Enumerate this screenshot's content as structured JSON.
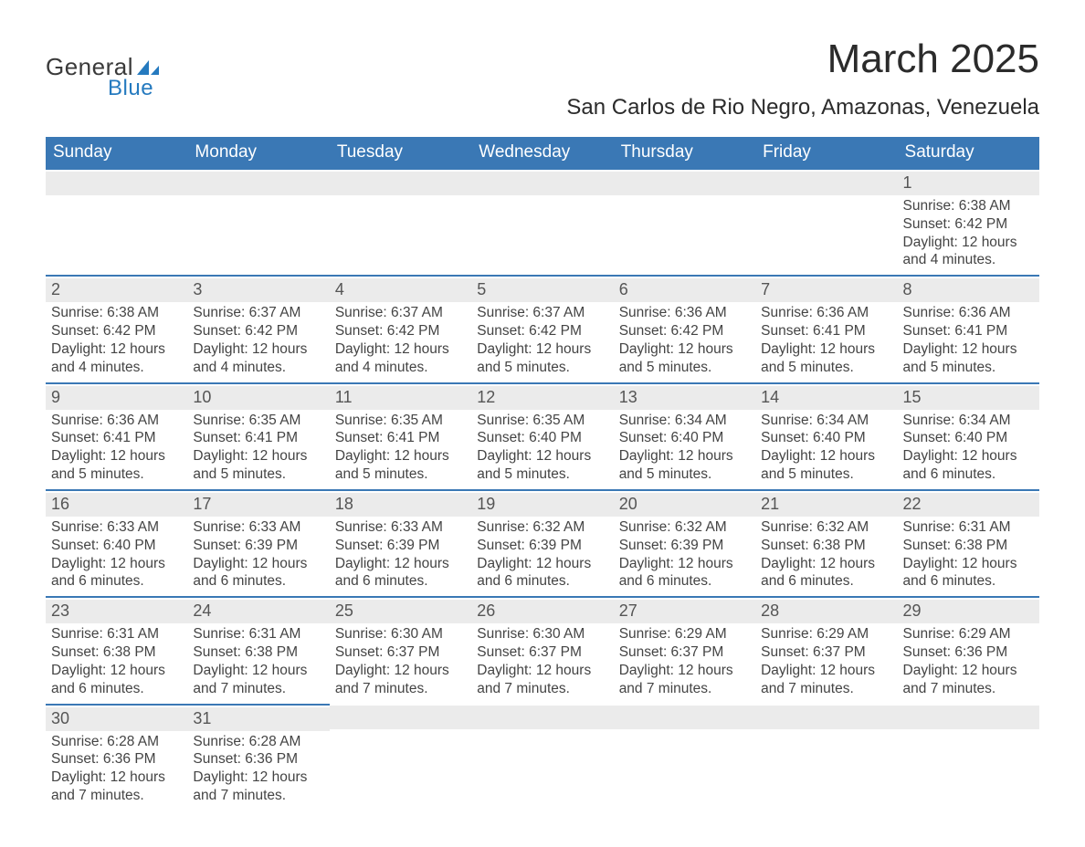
{
  "logo": {
    "general": "General",
    "blue": "Blue",
    "shape_color": "#257abf"
  },
  "title": "March 2025",
  "location": "San Carlos de Rio Negro, Amazonas, Venezuela",
  "colors": {
    "header_bg": "#3a78b5",
    "header_text": "#ffffff",
    "daynum_bg": "#ebebeb",
    "row_border": "#3a78b5",
    "text": "#414141"
  },
  "typography": {
    "title_fontsize": 44,
    "location_fontsize": 24,
    "dow_fontsize": 19,
    "daynum_fontsize": 18,
    "body_fontsize": 15.5
  },
  "days_of_week": [
    "Sunday",
    "Monday",
    "Tuesday",
    "Wednesday",
    "Thursday",
    "Friday",
    "Saturday"
  ],
  "weeks": [
    [
      {
        "blank": true
      },
      {
        "blank": true
      },
      {
        "blank": true
      },
      {
        "blank": true
      },
      {
        "blank": true
      },
      {
        "blank": true
      },
      {
        "n": "1",
        "sr": "Sunrise: 6:38 AM",
        "ss": "Sunset: 6:42 PM",
        "d1": "Daylight: 12 hours",
        "d2": "and 4 minutes."
      }
    ],
    [
      {
        "n": "2",
        "sr": "Sunrise: 6:38 AM",
        "ss": "Sunset: 6:42 PM",
        "d1": "Daylight: 12 hours",
        "d2": "and 4 minutes."
      },
      {
        "n": "3",
        "sr": "Sunrise: 6:37 AM",
        "ss": "Sunset: 6:42 PM",
        "d1": "Daylight: 12 hours",
        "d2": "and 4 minutes."
      },
      {
        "n": "4",
        "sr": "Sunrise: 6:37 AM",
        "ss": "Sunset: 6:42 PM",
        "d1": "Daylight: 12 hours",
        "d2": "and 4 minutes."
      },
      {
        "n": "5",
        "sr": "Sunrise: 6:37 AM",
        "ss": "Sunset: 6:42 PM",
        "d1": "Daylight: 12 hours",
        "d2": "and 5 minutes."
      },
      {
        "n": "6",
        "sr": "Sunrise: 6:36 AM",
        "ss": "Sunset: 6:42 PM",
        "d1": "Daylight: 12 hours",
        "d2": "and 5 minutes."
      },
      {
        "n": "7",
        "sr": "Sunrise: 6:36 AM",
        "ss": "Sunset: 6:41 PM",
        "d1": "Daylight: 12 hours",
        "d2": "and 5 minutes."
      },
      {
        "n": "8",
        "sr": "Sunrise: 6:36 AM",
        "ss": "Sunset: 6:41 PM",
        "d1": "Daylight: 12 hours",
        "d2": "and 5 minutes."
      }
    ],
    [
      {
        "n": "9",
        "sr": "Sunrise: 6:36 AM",
        "ss": "Sunset: 6:41 PM",
        "d1": "Daylight: 12 hours",
        "d2": "and 5 minutes."
      },
      {
        "n": "10",
        "sr": "Sunrise: 6:35 AM",
        "ss": "Sunset: 6:41 PM",
        "d1": "Daylight: 12 hours",
        "d2": "and 5 minutes."
      },
      {
        "n": "11",
        "sr": "Sunrise: 6:35 AM",
        "ss": "Sunset: 6:41 PM",
        "d1": "Daylight: 12 hours",
        "d2": "and 5 minutes."
      },
      {
        "n": "12",
        "sr": "Sunrise: 6:35 AM",
        "ss": "Sunset: 6:40 PM",
        "d1": "Daylight: 12 hours",
        "d2": "and 5 minutes."
      },
      {
        "n": "13",
        "sr": "Sunrise: 6:34 AM",
        "ss": "Sunset: 6:40 PM",
        "d1": "Daylight: 12 hours",
        "d2": "and 5 minutes."
      },
      {
        "n": "14",
        "sr": "Sunrise: 6:34 AM",
        "ss": "Sunset: 6:40 PM",
        "d1": "Daylight: 12 hours",
        "d2": "and 5 minutes."
      },
      {
        "n": "15",
        "sr": "Sunrise: 6:34 AM",
        "ss": "Sunset: 6:40 PM",
        "d1": "Daylight: 12 hours",
        "d2": "and 6 minutes."
      }
    ],
    [
      {
        "n": "16",
        "sr": "Sunrise: 6:33 AM",
        "ss": "Sunset: 6:40 PM",
        "d1": "Daylight: 12 hours",
        "d2": "and 6 minutes."
      },
      {
        "n": "17",
        "sr": "Sunrise: 6:33 AM",
        "ss": "Sunset: 6:39 PM",
        "d1": "Daylight: 12 hours",
        "d2": "and 6 minutes."
      },
      {
        "n": "18",
        "sr": "Sunrise: 6:33 AM",
        "ss": "Sunset: 6:39 PM",
        "d1": "Daylight: 12 hours",
        "d2": "and 6 minutes."
      },
      {
        "n": "19",
        "sr": "Sunrise: 6:32 AM",
        "ss": "Sunset: 6:39 PM",
        "d1": "Daylight: 12 hours",
        "d2": "and 6 minutes."
      },
      {
        "n": "20",
        "sr": "Sunrise: 6:32 AM",
        "ss": "Sunset: 6:39 PM",
        "d1": "Daylight: 12 hours",
        "d2": "and 6 minutes."
      },
      {
        "n": "21",
        "sr": "Sunrise: 6:32 AM",
        "ss": "Sunset: 6:38 PM",
        "d1": "Daylight: 12 hours",
        "d2": "and 6 minutes."
      },
      {
        "n": "22",
        "sr": "Sunrise: 6:31 AM",
        "ss": "Sunset: 6:38 PM",
        "d1": "Daylight: 12 hours",
        "d2": "and 6 minutes."
      }
    ],
    [
      {
        "n": "23",
        "sr": "Sunrise: 6:31 AM",
        "ss": "Sunset: 6:38 PM",
        "d1": "Daylight: 12 hours",
        "d2": "and 6 minutes."
      },
      {
        "n": "24",
        "sr": "Sunrise: 6:31 AM",
        "ss": "Sunset: 6:38 PM",
        "d1": "Daylight: 12 hours",
        "d2": "and 7 minutes."
      },
      {
        "n": "25",
        "sr": "Sunrise: 6:30 AM",
        "ss": "Sunset: 6:37 PM",
        "d1": "Daylight: 12 hours",
        "d2": "and 7 minutes."
      },
      {
        "n": "26",
        "sr": "Sunrise: 6:30 AM",
        "ss": "Sunset: 6:37 PM",
        "d1": "Daylight: 12 hours",
        "d2": "and 7 minutes."
      },
      {
        "n": "27",
        "sr": "Sunrise: 6:29 AM",
        "ss": "Sunset: 6:37 PM",
        "d1": "Daylight: 12 hours",
        "d2": "and 7 minutes."
      },
      {
        "n": "28",
        "sr": "Sunrise: 6:29 AM",
        "ss": "Sunset: 6:37 PM",
        "d1": "Daylight: 12 hours",
        "d2": "and 7 minutes."
      },
      {
        "n": "29",
        "sr": "Sunrise: 6:29 AM",
        "ss": "Sunset: 6:36 PM",
        "d1": "Daylight: 12 hours",
        "d2": "and 7 minutes."
      }
    ],
    [
      {
        "n": "30",
        "sr": "Sunrise: 6:28 AM",
        "ss": "Sunset: 6:36 PM",
        "d1": "Daylight: 12 hours",
        "d2": "and 7 minutes."
      },
      {
        "n": "31",
        "sr": "Sunrise: 6:28 AM",
        "ss": "Sunset: 6:36 PM",
        "d1": "Daylight: 12 hours",
        "d2": "and 7 minutes."
      },
      {
        "trailing": true
      },
      {
        "trailing": true
      },
      {
        "trailing": true
      },
      {
        "trailing": true
      },
      {
        "trailing": true
      }
    ]
  ]
}
